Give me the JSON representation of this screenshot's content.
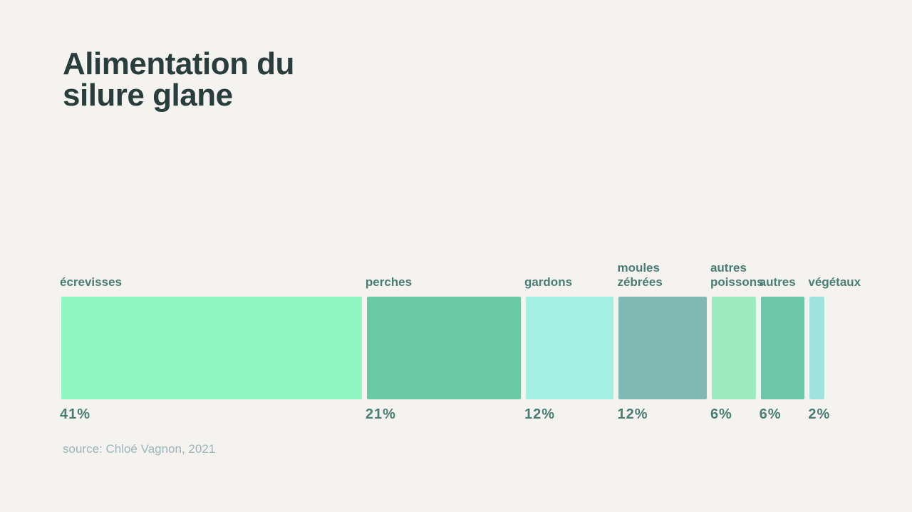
{
  "chart_data": {
    "type": "bar",
    "title": "Alimentation du silure glane",
    "categories": [
      "écrevisses",
      "perches",
      "gardons",
      "moules zébrées",
      "autres poissons",
      "autres",
      "végétaux"
    ],
    "values": [
      41,
      21,
      12,
      12,
      6,
      6,
      2
    ],
    "value_labels": [
      "41%",
      "21%",
      "12%",
      "12%",
      "6%",
      "6%",
      "2%"
    ],
    "colors": [
      "#8ef7c2",
      "#6bc9a8",
      "#a3efe3",
      "#80b8b4",
      "#9de9c0",
      "#6cc6a7",
      "#9fe3dc"
    ],
    "source": "source: Chloé Vagnon, 2021"
  }
}
